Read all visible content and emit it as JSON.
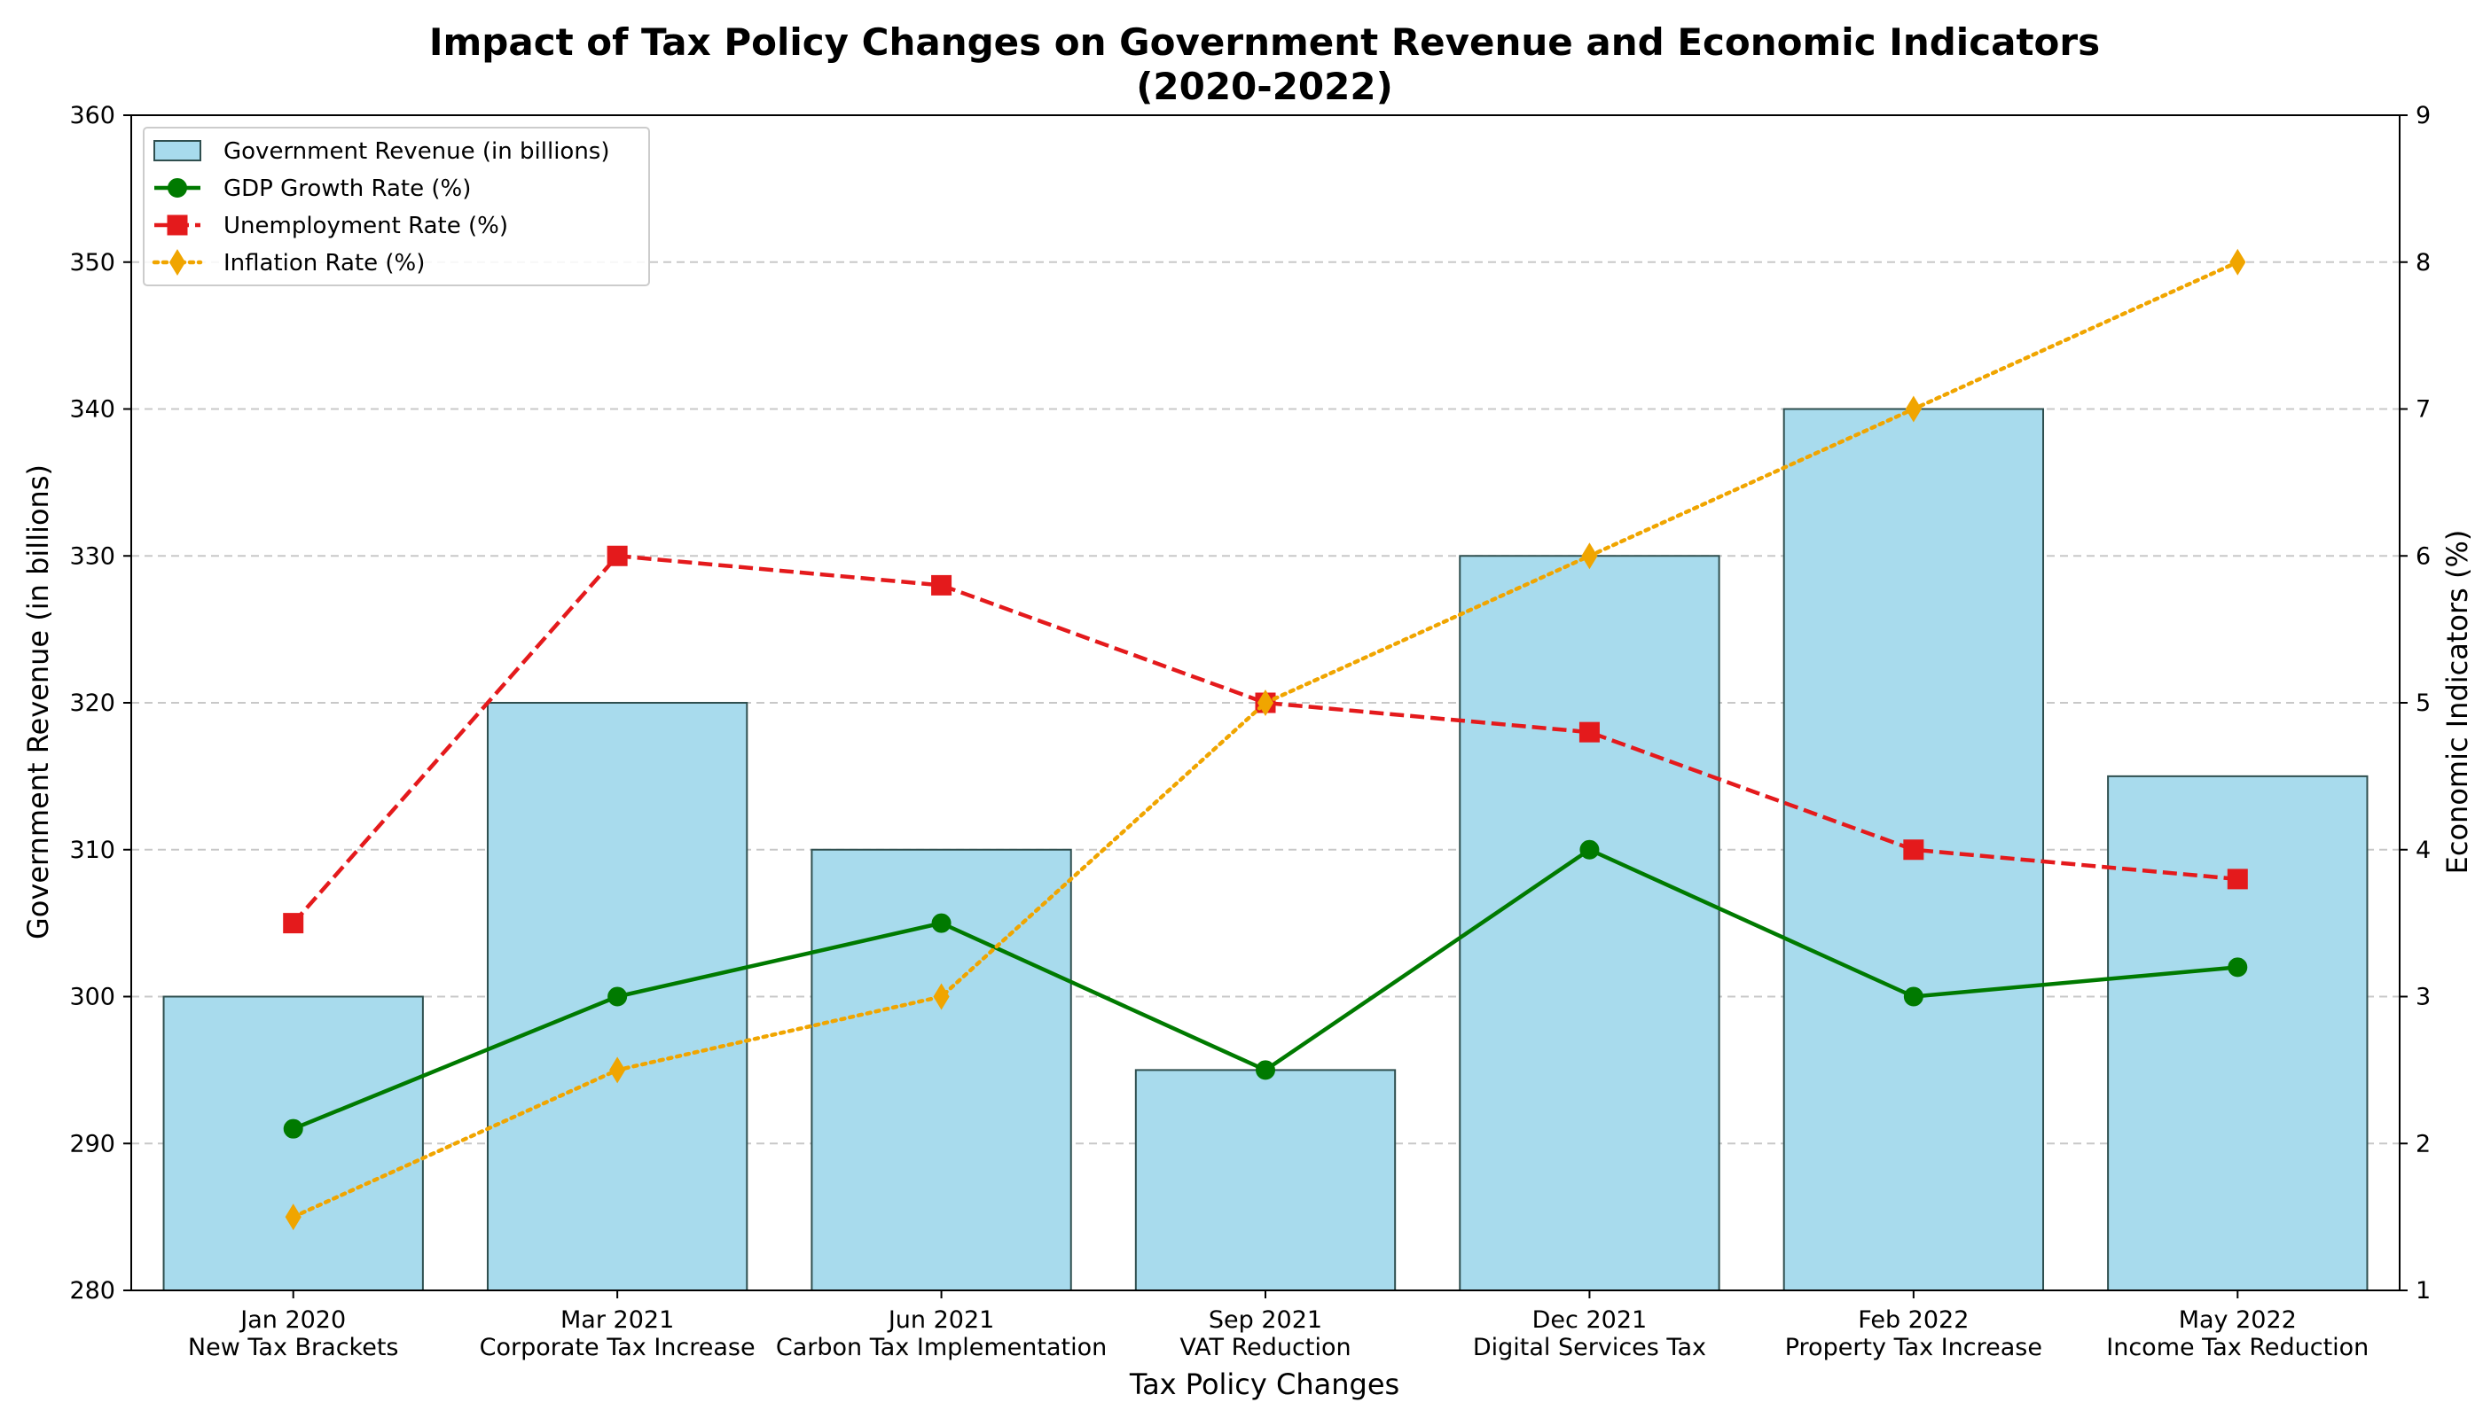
{
  "chart_data": {
    "type": "bar",
    "title_line1": "Impact of Tax Policy Changes on Government Revenue and Economic Indicators",
    "title_line2": "(2020-2022)",
    "xlabel": "Tax Policy Changes",
    "ylabel_left": "Government Revenue (in billions)",
    "ylabel_right": "Economic Indicators (%)",
    "categories": [
      {
        "date": "Jan 2020",
        "policy": "New Tax Brackets"
      },
      {
        "date": "Mar 2021",
        "policy": "Corporate Tax Increase"
      },
      {
        "date": "Jun 2021",
        "policy": "Carbon Tax Implementation"
      },
      {
        "date": "Sep 2021",
        "policy": "VAT Reduction"
      },
      {
        "date": "Dec 2021",
        "policy": "Digital Services Tax"
      },
      {
        "date": "Feb 2022",
        "policy": "Property Tax Increase"
      },
      {
        "date": "May 2022",
        "policy": "Income Tax Reduction"
      }
    ],
    "ylim_left": [
      280,
      360
    ],
    "yticks_left": [
      "280",
      "290",
      "300",
      "310",
      "320",
      "330",
      "340",
      "350",
      "360"
    ],
    "ylim_right": [
      1,
      9
    ],
    "yticks_right": [
      "1",
      "2",
      "3",
      "4",
      "5",
      "6",
      "7",
      "8",
      "9"
    ],
    "grid": "horizontal dashed",
    "legend_placement": "top-left",
    "bars": {
      "name": "Government Revenue (in billions)",
      "values": [
        300,
        320,
        310,
        295,
        330,
        340,
        315
      ],
      "color": "#a8dbed",
      "edge_color": "#2f4f4f"
    },
    "series": [
      {
        "name": "GDP Growth Rate (%)",
        "values": [
          2.1,
          3.0,
          3.5,
          2.5,
          4.0,
          3.0,
          3.2
        ],
        "color": "#007a00",
        "style": "solid",
        "marker": "circle"
      },
      {
        "name": "Unemployment Rate (%)",
        "values": [
          3.5,
          6.0,
          5.8,
          5.0,
          4.8,
          4.0,
          3.8
        ],
        "color": "#e41a1c",
        "style": "dashed",
        "marker": "square"
      },
      {
        "name": "Inflation Rate (%)",
        "values": [
          1.5,
          2.5,
          3.0,
          5.0,
          6.0,
          7.0,
          8.0
        ],
        "color": "#f0a500",
        "style": "dotted",
        "marker": "diamond"
      }
    ]
  }
}
